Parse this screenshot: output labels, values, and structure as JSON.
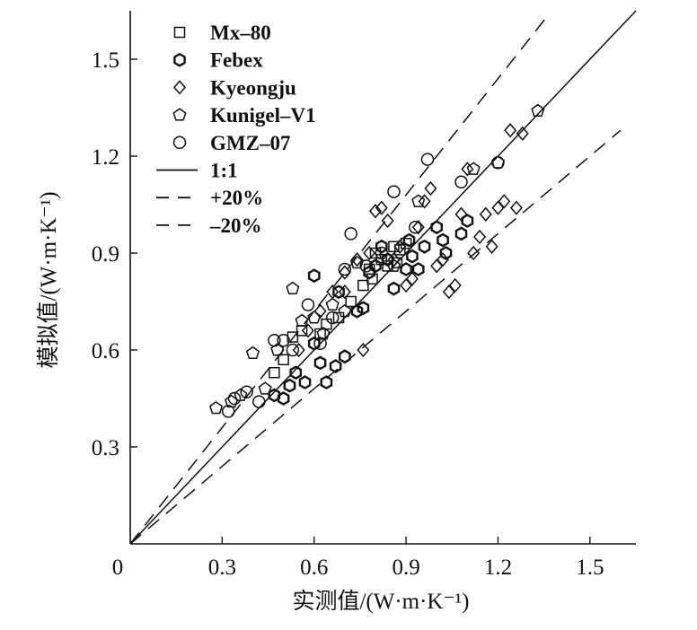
{
  "chart_data": {
    "type": "scatter",
    "title": "",
    "xlabel": "实测值/(W·m·K⁻¹)",
    "ylabel": "模拟值/(W·m·K⁻¹)",
    "xlim": [
      0,
      1.65
    ],
    "ylim": [
      0,
      1.65
    ],
    "x_ticks": [
      0,
      0.3,
      0.6,
      0.9,
      1.2,
      1.5
    ],
    "x_tick_labels": [
      "0",
      "0.3",
      "0.6",
      "0.9",
      "1.2",
      "1.5"
    ],
    "y_ticks": [
      0.3,
      0.6,
      0.9,
      1.2,
      1.5
    ],
    "y_tick_labels": [
      "0.3",
      "0.6",
      "0.9",
      "1.2",
      "1.5"
    ],
    "grid": false,
    "legend_position": "top-left",
    "series": [
      {
        "name": "Mx–80",
        "marker": "square",
        "points": [
          [
            0.47,
            0.53
          ],
          [
            0.5,
            0.57
          ],
          [
            0.53,
            0.64
          ],
          [
            0.56,
            0.66
          ],
          [
            0.62,
            0.65
          ],
          [
            0.64,
            0.68
          ],
          [
            0.68,
            0.7
          ],
          [
            0.72,
            0.75
          ],
          [
            0.76,
            0.8
          ],
          [
            0.79,
            0.82
          ],
          [
            0.82,
            0.88
          ],
          [
            0.84,
            0.86
          ],
          [
            0.86,
            0.92
          ],
          [
            0.87,
            0.87
          ],
          [
            0.88,
            0.91
          ],
          [
            0.9,
            0.93
          ],
          [
            0.8,
            0.9
          ],
          [
            0.78,
            0.85
          ]
        ]
      },
      {
        "name": "Febex",
        "marker": "hexagon",
        "points": [
          [
            0.47,
            0.46
          ],
          [
            0.5,
            0.45
          ],
          [
            0.52,
            0.49
          ],
          [
            0.54,
            0.53
          ],
          [
            0.57,
            0.5
          ],
          [
            0.6,
            0.62
          ],
          [
            0.62,
            0.56
          ],
          [
            0.64,
            0.5
          ],
          [
            0.67,
            0.55
          ],
          [
            0.7,
            0.58
          ],
          [
            0.74,
            0.72
          ],
          [
            0.76,
            0.73
          ],
          [
            0.78,
            0.84
          ],
          [
            0.8,
            0.86
          ],
          [
            0.82,
            0.92
          ],
          [
            0.84,
            0.88
          ],
          [
            0.86,
            0.79
          ],
          [
            0.9,
            0.85
          ],
          [
            0.92,
            0.89
          ],
          [
            0.94,
            0.85
          ],
          [
            0.96,
            0.92
          ],
          [
            1.0,
            0.98
          ],
          [
            1.02,
            0.94
          ],
          [
            1.08,
            0.96
          ],
          [
            1.1,
            1.0
          ],
          [
            1.03,
            0.9
          ],
          [
            0.91,
            0.94
          ],
          [
            0.6,
            0.83
          ],
          [
            0.68,
            0.78
          ]
        ]
      },
      {
        "name": "Kyeongju",
        "marker": "diamond",
        "points": [
          [
            0.55,
            0.6
          ],
          [
            0.58,
            0.66
          ],
          [
            0.62,
            0.72
          ],
          [
            0.66,
            0.78
          ],
          [
            0.7,
            0.84
          ],
          [
            0.74,
            0.88
          ],
          [
            0.76,
            0.6
          ],
          [
            0.78,
            0.9
          ],
          [
            0.8,
            1.03
          ],
          [
            0.82,
            1.04
          ],
          [
            0.86,
            0.88
          ],
          [
            0.88,
            0.92
          ],
          [
            0.9,
            0.8
          ],
          [
            0.92,
            0.82
          ],
          [
            0.94,
            0.98
          ],
          [
            0.96,
            1.06
          ],
          [
            0.98,
            1.1
          ],
          [
            1.0,
            0.86
          ],
          [
            1.02,
            0.88
          ],
          [
            1.04,
            0.78
          ],
          [
            1.06,
            0.8
          ],
          [
            1.08,
            1.02
          ],
          [
            1.1,
            1.16
          ],
          [
            1.12,
            0.9
          ],
          [
            1.14,
            0.95
          ],
          [
            1.16,
            1.02
          ],
          [
            1.18,
            0.92
          ],
          [
            1.2,
            1.04
          ],
          [
            1.22,
            1.06
          ],
          [
            1.24,
            1.28
          ],
          [
            1.26,
            1.04
          ],
          [
            1.28,
            1.27
          ],
          [
            0.7,
            0.78
          ],
          [
            0.84,
            1.0
          ]
        ]
      },
      {
        "name": "Kunigel–V1",
        "marker": "pentagon",
        "points": [
          [
            0.28,
            0.42
          ],
          [
            0.33,
            0.44
          ],
          [
            0.36,
            0.46
          ],
          [
            0.4,
            0.59
          ],
          [
            0.44,
            0.48
          ],
          [
            0.48,
            0.6
          ],
          [
            0.53,
            0.79
          ],
          [
            0.56,
            0.69
          ],
          [
            0.6,
            0.7
          ],
          [
            0.63,
            0.65
          ],
          [
            0.66,
            0.74
          ],
          [
            0.7,
            0.72
          ],
          [
            0.74,
            0.87
          ],
          [
            0.86,
            0.86
          ],
          [
            0.94,
            1.06
          ],
          [
            1.12,
            1.16
          ],
          [
            1.2,
            1.18
          ],
          [
            1.33,
            1.34
          ]
        ]
      },
      {
        "name": "GMZ–07",
        "marker": "circle",
        "points": [
          [
            0.32,
            0.41
          ],
          [
            0.34,
            0.45
          ],
          [
            0.38,
            0.47
          ],
          [
            0.42,
            0.44
          ],
          [
            0.47,
            0.63
          ],
          [
            0.5,
            0.63
          ],
          [
            0.53,
            0.6
          ],
          [
            0.58,
            0.74
          ],
          [
            0.62,
            0.62
          ],
          [
            0.66,
            0.7
          ],
          [
            0.7,
            0.85
          ],
          [
            0.72,
            0.96
          ],
          [
            0.77,
            0.86
          ],
          [
            0.82,
            0.9
          ],
          [
            0.86,
            1.09
          ],
          [
            0.93,
            0.98
          ],
          [
            0.97,
            1.19
          ],
          [
            1.08,
            1.12
          ],
          [
            1.2,
            1.18
          ]
        ]
      }
    ],
    "reference_lines": [
      {
        "name": "1:1",
        "slope": 1.0,
        "x_end": 1.65,
        "style": "solid"
      },
      {
        "name": "+20%",
        "slope": 1.2,
        "x_end": 1.36,
        "style": "dashed"
      },
      {
        "name": "–20%",
        "slope": 0.8,
        "x_end": 1.6,
        "style": "dashed"
      }
    ]
  }
}
